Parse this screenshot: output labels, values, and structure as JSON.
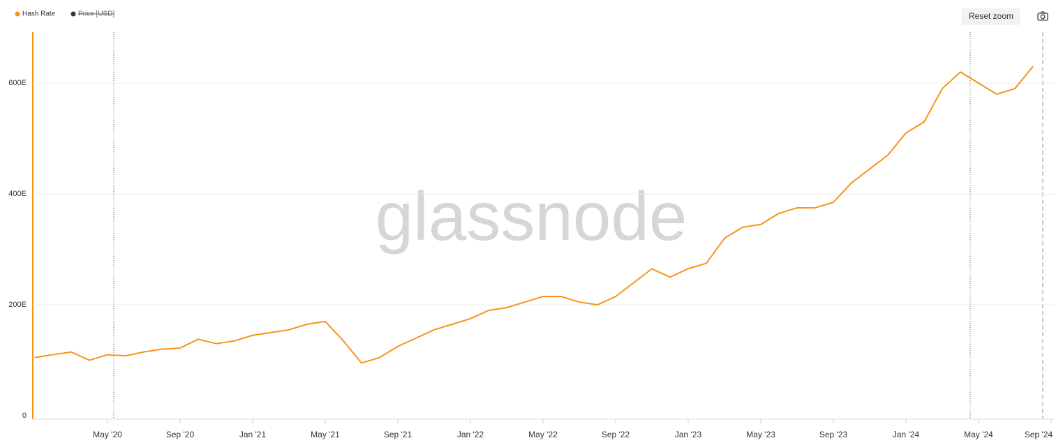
{
  "chart_data": {
    "type": "line",
    "watermark": "glassnode",
    "reset_zoom_label": "Reset zoom",
    "categories": [
      null,
      null,
      null,
      null,
      "May '20",
      null,
      null,
      null,
      "Sep '20",
      null,
      null,
      null,
      "Jan '21",
      null,
      null,
      null,
      "May '21",
      null,
      null,
      null,
      "Sep '21",
      null,
      null,
      null,
      "Jan '22",
      null,
      null,
      null,
      "May '22",
      null,
      null,
      null,
      "Sep '22",
      null,
      null,
      null,
      "Jan '23",
      null,
      null,
      null,
      "May '23",
      null,
      null,
      null,
      "Sep '23",
      null,
      null,
      null,
      "Jan '24",
      null,
      null,
      null,
      "May '24",
      null,
      null,
      null,
      "Sep '24"
    ],
    "series": [
      {
        "name": "Hash Rate",
        "color": "#f7931a",
        "values": [
          105,
          110,
          115,
          100,
          110,
          108,
          115,
          120,
          122,
          138,
          130,
          135,
          145,
          150,
          155,
          165,
          170,
          135,
          95,
          105,
          125,
          140,
          155,
          165,
          175,
          190,
          195,
          205,
          215,
          215,
          205,
          200,
          215,
          240,
          265,
          250,
          265,
          275,
          320,
          340,
          345,
          365,
          375,
          375,
          385,
          420,
          445,
          470,
          510,
          530,
          590,
          620,
          600,
          580,
          590,
          630,
          null
        ]
      }
    ],
    "hidden_series": [
      {
        "name": "Price [USD]",
        "color": "#333333"
      }
    ],
    "ylim": [
      0,
      692
    ],
    "yticks": [
      0,
      {
        "value": 200,
        "label": "200E"
      },
      {
        "value": 400,
        "label": "400E"
      },
      {
        "value": 600,
        "label": "600E"
      }
    ],
    "grid": true
  }
}
